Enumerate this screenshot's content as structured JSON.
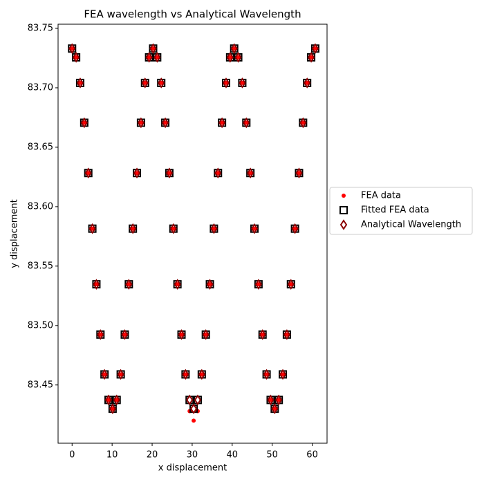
{
  "chart_data": {
    "type": "scatter",
    "title": "FEA wavelength vs Analytical Wavelength",
    "x_label": "x displacement",
    "y_label": "y displacement",
    "xlim": [
      -3.5,
      63.7
    ],
    "ylim": [
      83.401,
      83.7535
    ],
    "xticks": [
      0,
      10,
      20,
      30,
      40,
      50,
      60
    ],
    "yticks": [
      83.45,
      {
        "value": 83.5,
        "label": "83.50"
      },
      83.55,
      {
        "value": 83.6,
        "label": "83.60"
      },
      83.65,
      {
        "value": 83.7,
        "label": "83.70"
      },
      83.75
    ],
    "legend": "outside-right",
    "x": [
      0,
      1.0125,
      2.025,
      3.0375,
      4.05,
      5.0625,
      6.075,
      7.0875,
      8.1,
      9.1125,
      10.125,
      11.1375,
      12.15,
      13.1625,
      14.175,
      15.1875,
      16.2,
      17.2125,
      18.225,
      19.2375,
      20.25,
      21.2625,
      22.275,
      23.2875,
      24.3,
      25.3125,
      26.325,
      27.3375,
      28.35,
      29.3625,
      30.375,
      31.3875,
      32.4,
      33.4125,
      34.425,
      35.4375,
      36.45,
      37.4625,
      38.475,
      39.4875,
      40.5,
      41.5125,
      42.525,
      43.5375,
      44.55,
      45.5625,
      46.575,
      47.5875,
      48.6,
      49.6125,
      50.625,
      51.6375,
      52.65,
      53.6625,
      54.675,
      55.6875,
      56.7,
      57.7125,
      58.725,
      59.7375,
      60.75
    ],
    "series": [
      {
        "name": "FEA data",
        "color": "#ff0000",
        "marker": "dot",
        "values": [
          83.733,
          83.7256,
          83.7041,
          83.6706,
          83.6283,
          83.5815,
          83.5347,
          83.4924,
          83.4589,
          83.4374,
          83.43,
          83.4374,
          83.4589,
          83.4924,
          83.5347,
          83.5815,
          83.6283,
          83.6706,
          83.7041,
          83.7256,
          83.733,
          83.7256,
          83.7041,
          83.6706,
          83.6283,
          83.5815,
          83.5347,
          83.4924,
          83.4589,
          83.428,
          83.42,
          83.428,
          83.4589,
          83.4924,
          83.5347,
          83.5815,
          83.6283,
          83.6706,
          83.7041,
          83.7256,
          83.733,
          83.7256,
          83.7041,
          83.6706,
          83.6283,
          83.5815,
          83.5347,
          83.4924,
          83.4589,
          83.4374,
          83.43,
          83.4374,
          83.4589,
          83.4924,
          83.5347,
          83.5815,
          83.6283,
          83.6706,
          83.7041,
          83.7256,
          83.733
        ]
      },
      {
        "name": "Fitted FEA data",
        "color": "#000000",
        "marker": "square",
        "values": [
          83.733,
          83.7256,
          83.7041,
          83.6706,
          83.6283,
          83.5815,
          83.5347,
          83.4924,
          83.4589,
          83.4374,
          83.43,
          83.4374,
          83.4589,
          83.4924,
          83.5347,
          83.5815,
          83.6283,
          83.6706,
          83.7041,
          83.7256,
          83.733,
          83.7256,
          83.7041,
          83.6706,
          83.6283,
          83.5815,
          83.5347,
          83.4924,
          83.4589,
          83.4374,
          83.43,
          83.4374,
          83.4589,
          83.4924,
          83.5347,
          83.5815,
          83.6283,
          83.6706,
          83.7041,
          83.7256,
          83.733,
          83.7256,
          83.7041,
          83.6706,
          83.6283,
          83.5815,
          83.5347,
          83.4924,
          83.4589,
          83.4374,
          83.43,
          83.4374,
          83.4589,
          83.4924,
          83.5347,
          83.5815,
          83.6283,
          83.6706,
          83.7041,
          83.7256,
          83.733
        ]
      },
      {
        "name": "Analytical Wavelength",
        "color": "#8b0000",
        "marker": "diamond",
        "values": [
          83.733,
          83.7256,
          83.7041,
          83.6706,
          83.6283,
          83.5815,
          83.5347,
          83.4924,
          83.4589,
          83.4374,
          83.43,
          83.4374,
          83.4589,
          83.4924,
          83.5347,
          83.5815,
          83.6283,
          83.6706,
          83.7041,
          83.7256,
          83.733,
          83.7256,
          83.7041,
          83.6706,
          83.6283,
          83.5815,
          83.5347,
          83.4924,
          83.4589,
          83.4374,
          83.43,
          83.4374,
          83.4589,
          83.4924,
          83.5347,
          83.5815,
          83.6283,
          83.6706,
          83.7041,
          83.7256,
          83.733,
          83.7256,
          83.7041,
          83.6706,
          83.6283,
          83.5815,
          83.5347,
          83.4924,
          83.4589,
          83.4374,
          83.43,
          83.4374,
          83.4589,
          83.4924,
          83.5347,
          83.5815,
          83.6283,
          83.6706,
          83.7041,
          83.7256,
          83.733
        ]
      }
    ]
  }
}
